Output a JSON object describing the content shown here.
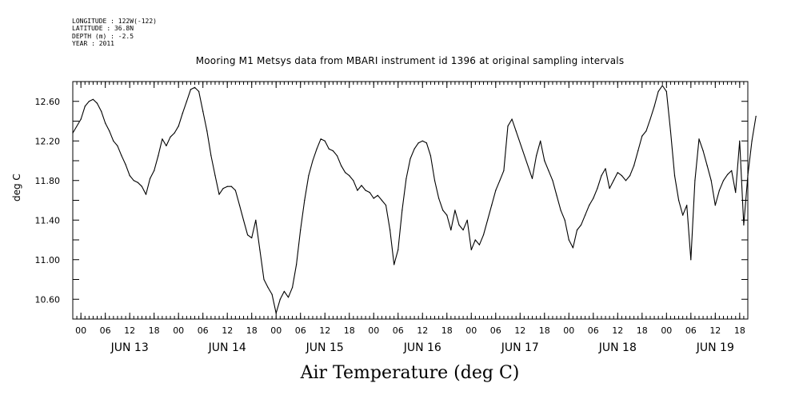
{
  "header": {
    "longitude": "LONGITUDE : 122W(-122)",
    "latitude": "LATITUDE : 36.8N",
    "depth": "DEPTH (m) : -2.5",
    "year": "YEAR : 2011"
  },
  "chart_data": {
    "type": "line",
    "title": "Mooring M1 Metsys data from MBARI instrument id 1396 at original sampling intervals",
    "xlabel": "Air Temperature (deg C)",
    "ylabel": "deg C",
    "ylim": [
      10.4,
      12.8
    ],
    "yticks": [
      "10.60",
      "11.00",
      "11.40",
      "11.80",
      "12.20",
      "12.60"
    ],
    "xlim": [
      "2011-06-12T22:00",
      "2011-06-19T20:00"
    ],
    "hour_ticks": [
      "00",
      "06",
      "12",
      "18",
      "00",
      "06",
      "12",
      "18",
      "00",
      "06",
      "12",
      "18",
      "00",
      "06",
      "12",
      "18",
      "00",
      "06",
      "12",
      "18",
      "00",
      "06",
      "12",
      "18",
      "00",
      "06",
      "12",
      "18"
    ],
    "day_labels": [
      "JUN 13",
      "JUN 14",
      "JUN 15",
      "JUN 16",
      "JUN 17",
      "JUN 18",
      "JUN 19"
    ],
    "series": [
      {
        "color": "#000000",
        "points": [
          [
            "2011-06-12T22:00",
            12.28
          ],
          [
            "2011-06-13T00:00",
            12.42
          ],
          [
            "2011-06-13T01:00",
            12.55
          ],
          [
            "2011-06-13T02:00",
            12.6
          ],
          [
            "2011-06-13T03:00",
            12.62
          ],
          [
            "2011-06-13T04:00",
            12.58
          ],
          [
            "2011-06-13T05:00",
            12.5
          ],
          [
            "2011-06-13T06:00",
            12.38
          ],
          [
            "2011-06-13T07:00",
            12.3
          ],
          [
            "2011-06-13T08:00",
            12.2
          ],
          [
            "2011-06-13T09:00",
            12.15
          ],
          [
            "2011-06-13T10:00",
            12.05
          ],
          [
            "2011-06-13T11:00",
            11.96
          ],
          [
            "2011-06-13T12:00",
            11.85
          ],
          [
            "2011-06-13T13:00",
            11.8
          ],
          [
            "2011-06-13T14:00",
            11.78
          ],
          [
            "2011-06-13T15:00",
            11.74
          ],
          [
            "2011-06-13T16:00",
            11.66
          ],
          [
            "2011-06-13T17:00",
            11.82
          ],
          [
            "2011-06-13T18:00",
            11.9
          ],
          [
            "2011-06-13T19:00",
            12.05
          ],
          [
            "2011-06-13T20:00",
            12.22
          ],
          [
            "2011-06-13T21:00",
            12.15
          ],
          [
            "2011-06-13T22:00",
            12.24
          ],
          [
            "2011-06-13T23:00",
            12.28
          ],
          [
            "2011-06-14T00:00",
            12.35
          ],
          [
            "2011-06-14T01:00",
            12.48
          ],
          [
            "2011-06-14T02:00",
            12.6
          ],
          [
            "2011-06-14T03:00",
            12.72
          ],
          [
            "2011-06-14T04:00",
            12.74
          ],
          [
            "2011-06-14T05:00",
            12.7
          ],
          [
            "2011-06-14T06:00",
            12.5
          ],
          [
            "2011-06-14T07:00",
            12.3
          ],
          [
            "2011-06-14T08:00",
            12.05
          ],
          [
            "2011-06-14T09:00",
            11.85
          ],
          [
            "2011-06-14T10:00",
            11.66
          ],
          [
            "2011-06-14T11:00",
            11.72
          ],
          [
            "2011-06-14T12:00",
            11.74
          ],
          [
            "2011-06-14T13:00",
            11.74
          ],
          [
            "2011-06-14T14:00",
            11.7
          ],
          [
            "2011-06-14T15:00",
            11.55
          ],
          [
            "2011-06-14T16:00",
            11.4
          ],
          [
            "2011-06-14T17:00",
            11.25
          ],
          [
            "2011-06-14T18:00",
            11.22
          ],
          [
            "2011-06-14T19:00",
            11.4
          ],
          [
            "2011-06-14T20:00",
            11.1
          ],
          [
            "2011-06-14T21:00",
            10.8
          ],
          [
            "2011-06-14T22:00",
            10.72
          ],
          [
            "2011-06-14T23:00",
            10.65
          ],
          [
            "2011-06-15T00:00",
            10.46
          ],
          [
            "2011-06-15T01:00",
            10.6
          ],
          [
            "2011-06-15T02:00",
            10.68
          ],
          [
            "2011-06-15T03:00",
            10.62
          ],
          [
            "2011-06-15T04:00",
            10.72
          ],
          [
            "2011-06-15T05:00",
            10.95
          ],
          [
            "2011-06-15T06:00",
            11.3
          ],
          [
            "2011-06-15T07:00",
            11.6
          ],
          [
            "2011-06-15T08:00",
            11.85
          ],
          [
            "2011-06-15T09:00",
            12.0
          ],
          [
            "2011-06-15T10:00",
            12.12
          ],
          [
            "2011-06-15T11:00",
            12.22
          ],
          [
            "2011-06-15T12:00",
            12.2
          ],
          [
            "2011-06-15T13:00",
            12.12
          ],
          [
            "2011-06-15T14:00",
            12.1
          ],
          [
            "2011-06-15T15:00",
            12.05
          ],
          [
            "2011-06-15T16:00",
            11.95
          ],
          [
            "2011-06-15T17:00",
            11.88
          ],
          [
            "2011-06-15T18:00",
            11.85
          ],
          [
            "2011-06-15T19:00",
            11.8
          ],
          [
            "2011-06-15T20:00",
            11.7
          ],
          [
            "2011-06-15T21:00",
            11.75
          ],
          [
            "2011-06-15T22:00",
            11.7
          ],
          [
            "2011-06-15T23:00",
            11.68
          ],
          [
            "2011-06-16T00:00",
            11.62
          ],
          [
            "2011-06-16T01:00",
            11.65
          ],
          [
            "2011-06-16T02:00",
            11.6
          ],
          [
            "2011-06-16T03:00",
            11.55
          ],
          [
            "2011-06-16T04:00",
            11.3
          ],
          [
            "2011-06-16T05:00",
            10.95
          ],
          [
            "2011-06-16T06:00",
            11.1
          ],
          [
            "2011-06-16T07:00",
            11.5
          ],
          [
            "2011-06-16T08:00",
            11.82
          ],
          [
            "2011-06-16T09:00",
            12.02
          ],
          [
            "2011-06-16T10:00",
            12.12
          ],
          [
            "2011-06-16T11:00",
            12.18
          ],
          [
            "2011-06-16T12:00",
            12.2
          ],
          [
            "2011-06-16T13:00",
            12.18
          ],
          [
            "2011-06-16T14:00",
            12.05
          ],
          [
            "2011-06-16T15:00",
            11.8
          ],
          [
            "2011-06-16T16:00",
            11.62
          ],
          [
            "2011-06-16T17:00",
            11.5
          ],
          [
            "2011-06-16T18:00",
            11.45
          ],
          [
            "2011-06-16T19:00",
            11.3
          ],
          [
            "2011-06-16T20:00",
            11.5
          ],
          [
            "2011-06-16T21:00",
            11.35
          ],
          [
            "2011-06-16T22:00",
            11.3
          ],
          [
            "2011-06-16T23:00",
            11.4
          ],
          [
            "2011-06-17T00:00",
            11.1
          ],
          [
            "2011-06-17T01:00",
            11.2
          ],
          [
            "2011-06-17T02:00",
            11.15
          ],
          [
            "2011-06-17T03:00",
            11.25
          ],
          [
            "2011-06-17T04:00",
            11.4
          ],
          [
            "2011-06-17T05:00",
            11.55
          ],
          [
            "2011-06-17T06:00",
            11.7
          ],
          [
            "2011-06-17T07:00",
            11.8
          ],
          [
            "2011-06-17T08:00",
            11.9
          ],
          [
            "2011-06-17T09:00",
            12.35
          ],
          [
            "2011-06-17T10:00",
            12.42
          ],
          [
            "2011-06-17T11:00",
            12.3
          ],
          [
            "2011-06-17T15:00",
            11.82
          ],
          [
            "2011-06-17T16:00",
            12.05
          ],
          [
            "2011-06-17T17:00",
            12.2
          ],
          [
            "2011-06-17T18:00",
            12.0
          ],
          [
            "2011-06-17T19:00",
            11.9
          ],
          [
            "2011-06-17T20:00",
            11.8
          ],
          [
            "2011-06-17T21:00",
            11.65
          ],
          [
            "2011-06-17T22:00",
            11.5
          ],
          [
            "2011-06-17T23:00",
            11.4
          ],
          [
            "2011-06-18T00:00",
            11.2
          ],
          [
            "2011-06-18T01:00",
            11.12
          ],
          [
            "2011-06-18T02:00",
            11.3
          ],
          [
            "2011-06-18T03:00",
            11.35
          ],
          [
            "2011-06-18T04:00",
            11.45
          ],
          [
            "2011-06-18T05:00",
            11.55
          ],
          [
            "2011-06-18T06:00",
            11.62
          ],
          [
            "2011-06-18T07:00",
            11.72
          ],
          [
            "2011-06-18T08:00",
            11.85
          ],
          [
            "2011-06-18T09:00",
            11.92
          ],
          [
            "2011-06-18T10:00",
            11.72
          ],
          [
            "2011-06-18T11:00",
            11.8
          ],
          [
            "2011-06-18T12:00",
            11.88
          ],
          [
            "2011-06-18T13:00",
            11.85
          ],
          [
            "2011-06-18T14:00",
            11.8
          ],
          [
            "2011-06-18T15:00",
            11.85
          ],
          [
            "2011-06-18T16:00",
            11.95
          ],
          [
            "2011-06-18T17:00",
            12.1
          ],
          [
            "2011-06-18T18:00",
            12.25
          ],
          [
            "2011-06-18T19:00",
            12.3
          ],
          [
            "2011-06-18T20:00",
            12.42
          ],
          [
            "2011-06-18T21:00",
            12.55
          ],
          [
            "2011-06-18T22:00",
            12.7
          ],
          [
            "2011-06-18T23:00",
            12.76
          ],
          [
            "2011-06-19T00:00",
            12.7
          ],
          [
            "2011-06-19T01:00",
            12.3
          ],
          [
            "2011-06-19T02:00",
            11.85
          ],
          [
            "2011-06-19T03:00",
            11.6
          ],
          [
            "2011-06-19T04:00",
            11.45
          ],
          [
            "2011-06-19T05:00",
            11.55
          ],
          [
            "2011-06-19T06:00",
            11.0
          ],
          [
            "2011-06-19T07:00",
            11.8
          ],
          [
            "2011-06-19T08:00",
            12.22
          ],
          [
            "2011-06-19T09:00",
            12.1
          ],
          [
            "2011-06-19T10:00",
            11.95
          ],
          [
            "2011-06-19T11:00",
            11.8
          ],
          [
            "2011-06-19T12:00",
            11.55
          ],
          [
            "2011-06-19T13:00",
            11.7
          ],
          [
            "2011-06-19T14:00",
            11.8
          ],
          [
            "2011-06-19T15:00",
            11.86
          ],
          [
            "2011-06-19T16:00",
            11.9
          ],
          [
            "2011-06-19T17:00",
            11.68
          ],
          [
            "2011-06-19T18:00",
            12.2
          ],
          [
            "2011-06-19T19:00",
            11.35
          ],
          [
            "2011-06-19T20:00",
            11.85
          ],
          [
            "2011-06-19T21:00",
            12.2
          ],
          [
            "2011-06-19T22:00",
            12.45
          ]
        ]
      }
    ]
  }
}
